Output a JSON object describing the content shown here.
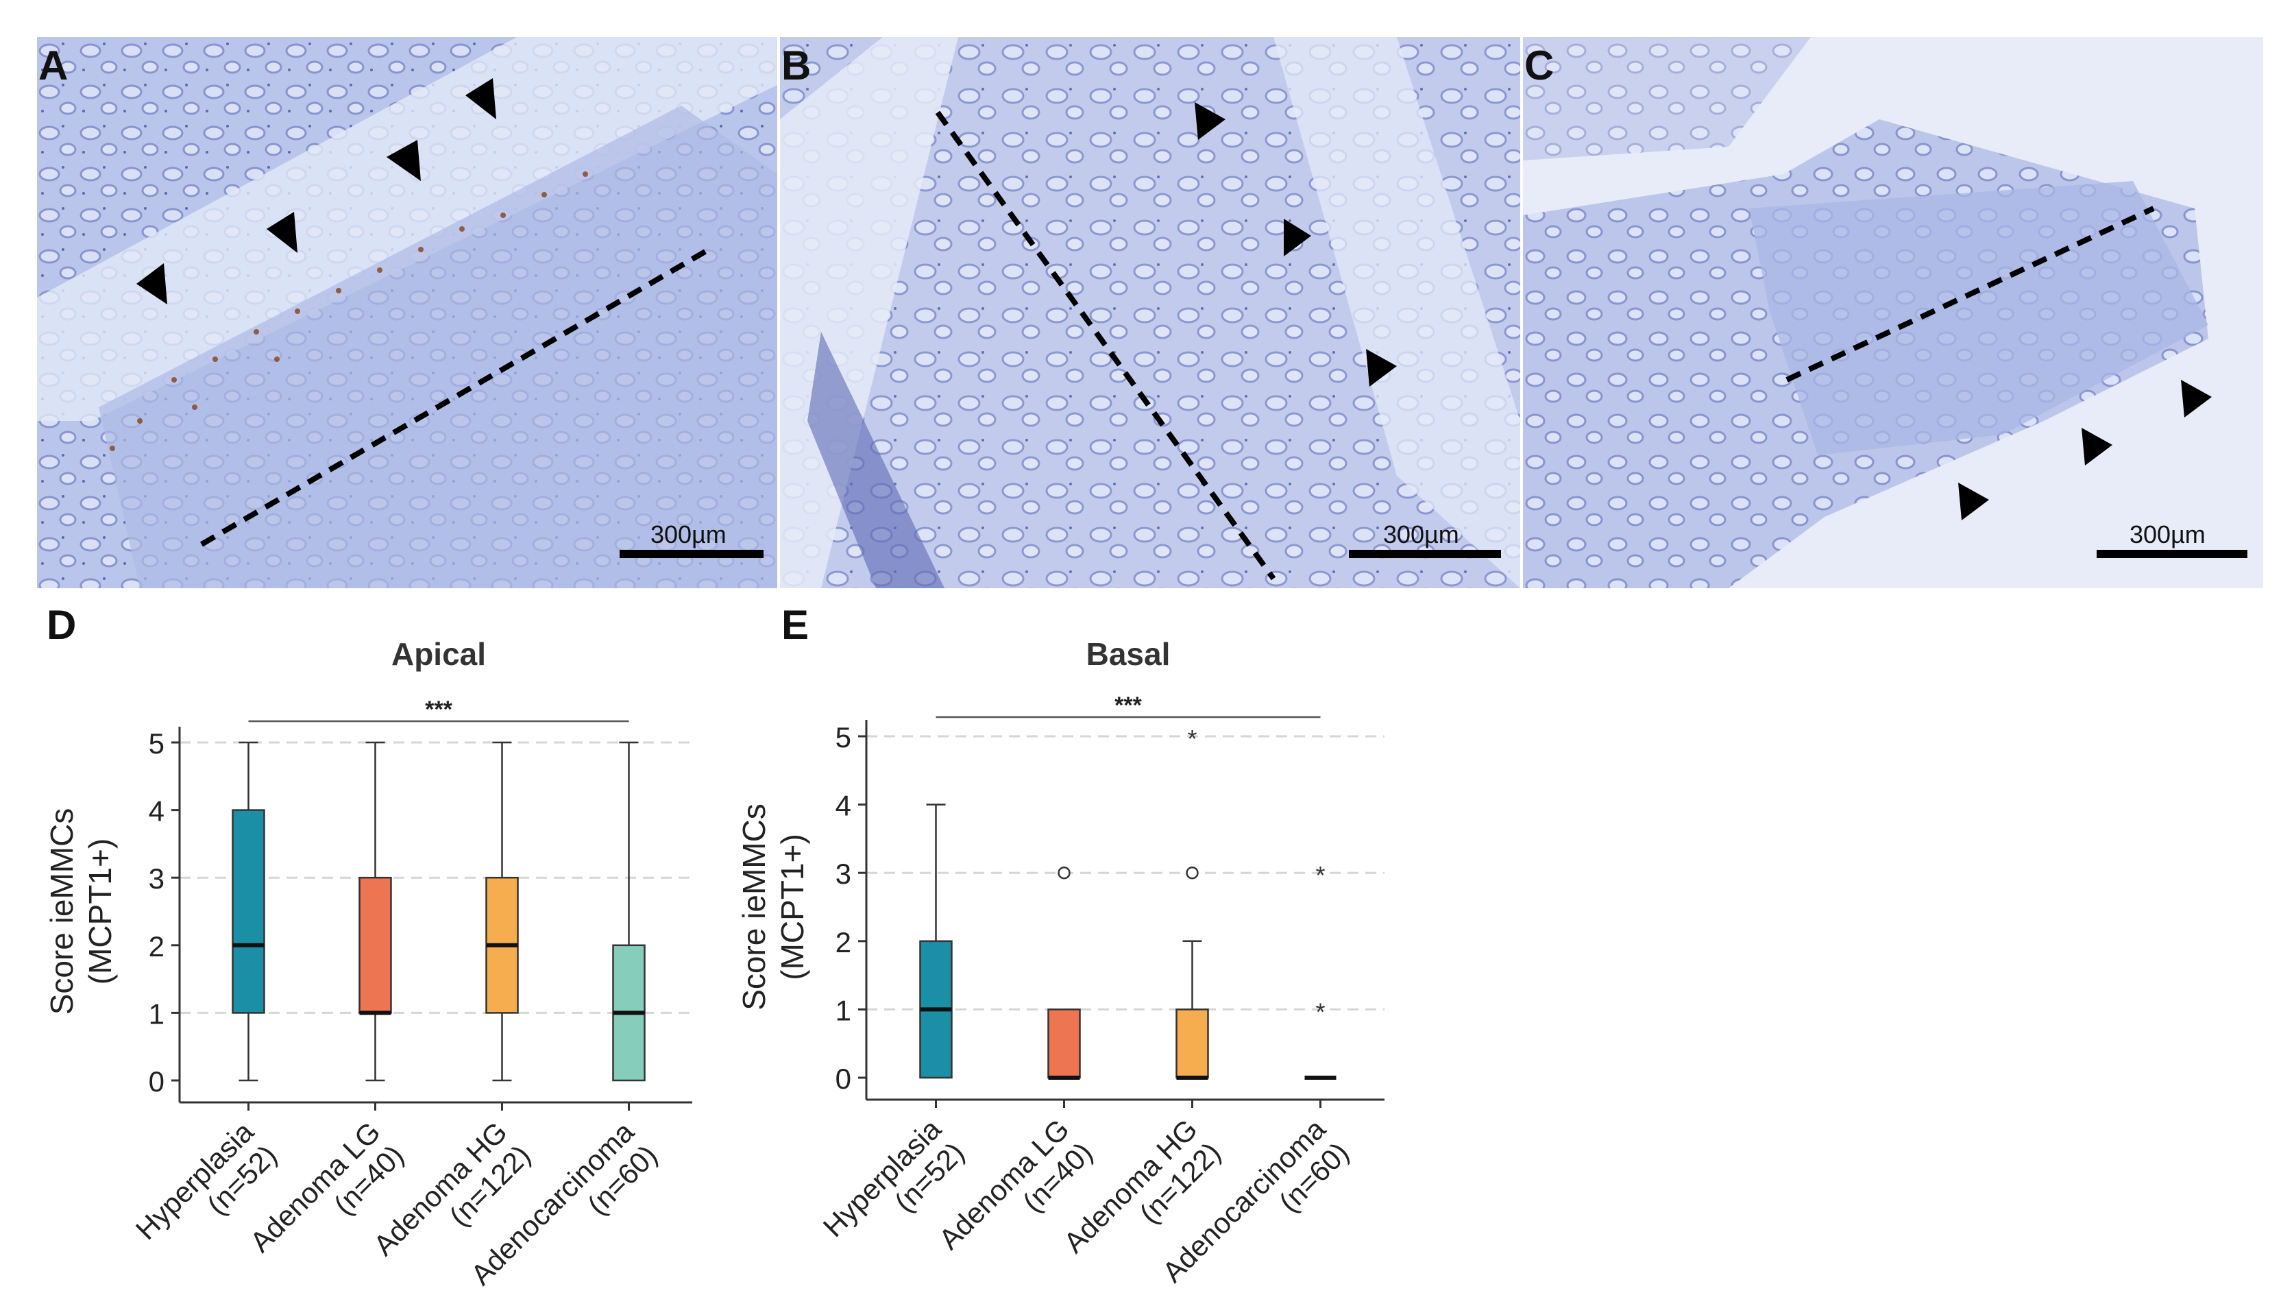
{
  "panels": {
    "A": {
      "letter": "A",
      "scale_label": "300µm"
    },
    "B": {
      "letter": "B",
      "scale_label": "300µm"
    },
    "C": {
      "letter": "C",
      "scale_label": "300µm"
    },
    "D": {
      "letter": "D"
    },
    "E": {
      "letter": "E"
    }
  },
  "chart_data": [
    {
      "type": "box",
      "panel": "D",
      "title": "Apical",
      "ylabel_line1": "Score ieMMCs",
      "ylabel_line2": "(MCPT1+)",
      "ylim": [
        0,
        5
      ],
      "yticks": [
        "0",
        "1",
        "2",
        "3",
        "4",
        "5"
      ],
      "grid": "dashed horizontal at 1, 3, 5",
      "significance": {
        "label": "***",
        "from": "Hyperplasia",
        "to": "Adenocarcinoma"
      },
      "categories": [
        {
          "name": "Hyperplasia",
          "n": "(n=52)",
          "color": "#1b8fa6",
          "min": 0,
          "q1": 1,
          "median": 2,
          "q3": 4,
          "max": 5,
          "outliers": [],
          "extremes": []
        },
        {
          "name": "Adenoma LG",
          "n": "(n=40)",
          "color": "#ee7551",
          "min": 0,
          "q1": 1,
          "median": 1,
          "q3": 3,
          "max": 5,
          "outliers": [],
          "extremes": []
        },
        {
          "name": "Adenoma HG",
          "n": "(n=122)",
          "color": "#f5ad4f",
          "min": 0,
          "q1": 1,
          "median": 2,
          "q3": 3,
          "max": 5,
          "outliers": [],
          "extremes": []
        },
        {
          "name": "Adenocarcinoma",
          "n": "(n=60)",
          "color": "#86cdbb",
          "min": 0,
          "q1": 0,
          "median": 1,
          "q3": 2,
          "max": 5,
          "outliers": [],
          "extremes": []
        }
      ]
    },
    {
      "type": "box",
      "panel": "E",
      "title": "Basal",
      "ylabel_line1": "Score ieMMCs",
      "ylabel_line2": "(MCPT1+)",
      "ylim": [
        0,
        5
      ],
      "yticks": [
        "0",
        "1",
        "2",
        "3",
        "4",
        "5"
      ],
      "grid": "dashed horizontal at 1, 3, 5",
      "significance": {
        "label": "***",
        "from": "Hyperplasia",
        "to": "Adenocarcinoma"
      },
      "categories": [
        {
          "name": "Hyperplasia",
          "n": "(n=52)",
          "color": "#1b8fa6",
          "min": 0,
          "q1": 0,
          "median": 1,
          "q3": 2,
          "max": 4,
          "outliers": [],
          "extremes": []
        },
        {
          "name": "Adenoma LG",
          "n": "(n=40)",
          "color": "#ee7551",
          "min": 0,
          "q1": 0,
          "median": 0,
          "q3": 1,
          "max": 1,
          "outliers": [
            3
          ],
          "extremes": []
        },
        {
          "name": "Adenoma HG",
          "n": "(n=122)",
          "color": "#f5ad4f",
          "min": 0,
          "q1": 0,
          "median": 0,
          "q3": 1,
          "max": 2,
          "outliers": [
            3
          ],
          "extremes": [
            5
          ]
        },
        {
          "name": "Adenocarcinoma",
          "n": "(n=60)",
          "color": "#86cdbb",
          "min": 0,
          "q1": 0,
          "median": 0,
          "q3": 0,
          "max": 0,
          "outliers": [],
          "extremes": [
            1,
            3
          ]
        }
      ]
    }
  ]
}
